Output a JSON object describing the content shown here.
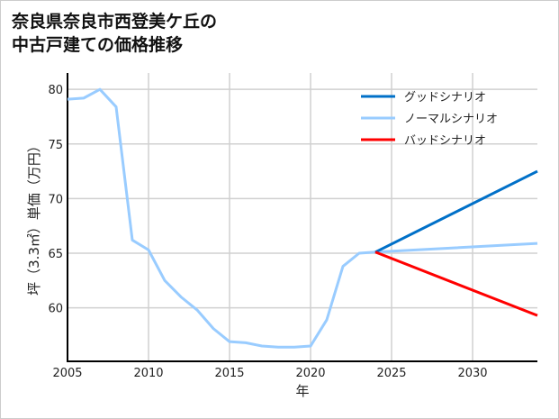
{
  "chart_data": {
    "type": "line",
    "title": [
      "奈良県奈良市西登美ケ丘の",
      "中古戸建ての価格推移"
    ],
    "xlabel": "年",
    "ylabel": "坪（3.3㎡）単価（万円）",
    "xlim": [
      2005,
      2034
    ],
    "ylim": [
      55.1,
      81.5
    ],
    "xticks": [
      2005,
      2010,
      2015,
      2020,
      2025,
      2030
    ],
    "yticks": [
      60,
      65,
      70,
      75,
      80
    ],
    "grid": true,
    "legend_position": "top-right",
    "series": [
      {
        "name": "グッドシナリオ",
        "color": "#0070c8",
        "x": [
          2024,
          2034
        ],
        "values": [
          65.1,
          72.5
        ]
      },
      {
        "name": "ノーマルシナリオ",
        "color": "#99ccff",
        "x": [
          2005,
          2006,
          2007,
          2008,
          2009,
          2010,
          2011,
          2012,
          2013,
          2014,
          2015,
          2016,
          2017,
          2018,
          2019,
          2020,
          2021,
          2022,
          2023,
          2024,
          2034
        ],
        "values": [
          79.1,
          79.2,
          80.0,
          78.4,
          66.2,
          65.3,
          62.5,
          61.0,
          59.8,
          58.1,
          56.9,
          56.8,
          56.5,
          56.4,
          56.4,
          56.5,
          58.9,
          63.8,
          65.0,
          65.1,
          65.9
        ]
      },
      {
        "name": "バッドシナリオ",
        "color": "#ff0000",
        "x": [
          2024,
          2034
        ],
        "values": [
          65.1,
          59.3
        ]
      }
    ]
  }
}
